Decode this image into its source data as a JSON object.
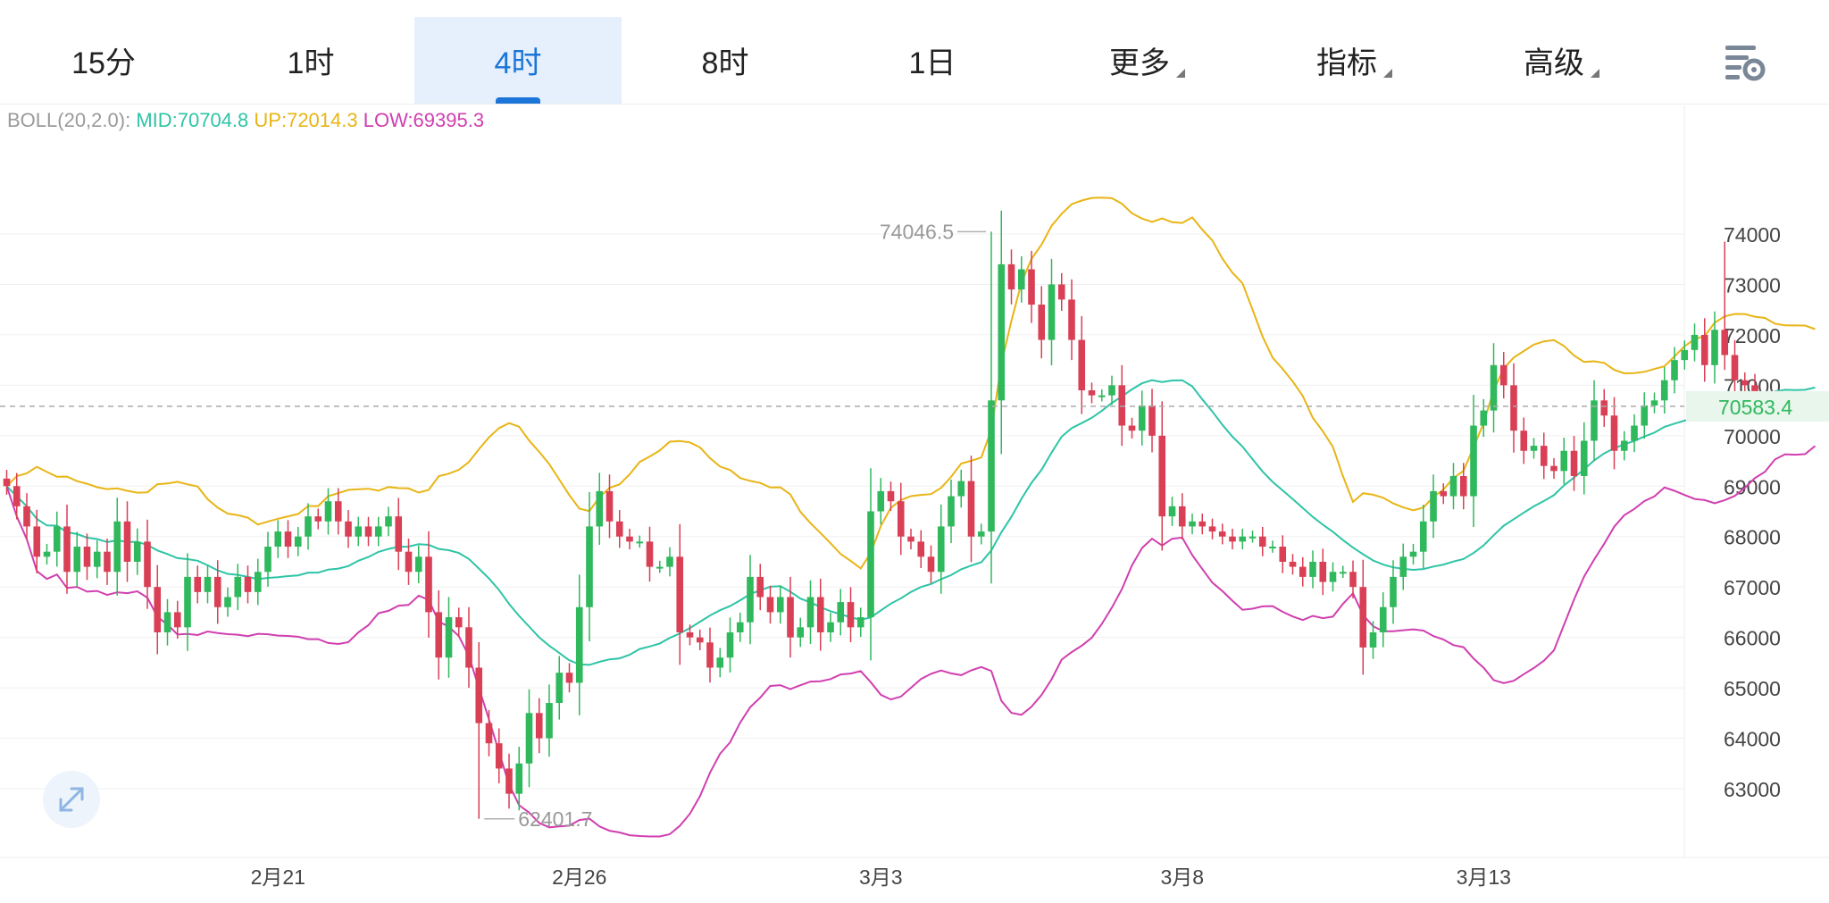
{
  "tabs": [
    {
      "label": "15分",
      "active": false
    },
    {
      "label": "1时",
      "active": false
    },
    {
      "label": "4时",
      "active": true
    },
    {
      "label": "8时",
      "active": false
    },
    {
      "label": "1日",
      "active": false
    },
    {
      "label": "更多",
      "active": false,
      "dropdown": true
    },
    {
      "label": "指标",
      "active": false,
      "dropdown": true
    },
    {
      "label": "高级",
      "active": false,
      "dropdown": true
    }
  ],
  "toolbar": {
    "settings_icon": "chart-settings-icon",
    "expand_icon": "expand-arrows-icon"
  },
  "indicator": {
    "name": "BOLL(20,2.0):",
    "mid_label": "MID:70704.8",
    "up_label": "UP:72014.3",
    "low_label": "LOW:69395.3"
  },
  "colors": {
    "up": "#2fb85c",
    "down": "#d93f55",
    "mid": "#2ec4a6",
    "upper": "#e8b515",
    "lower": "#d03fb0",
    "accent": "#1b74d7"
  },
  "chart_data": {
    "type": "candlestick",
    "interval": "4时",
    "y_ticks": [
      63000,
      64000,
      65000,
      66000,
      67000,
      68000,
      69000,
      70000,
      71000,
      72000,
      73000,
      74000
    ],
    "ylim": [
      62000,
      75000
    ],
    "x_labels": [
      {
        "label": "2月21",
        "index": 27
      },
      {
        "label": "2月26",
        "index": 57
      },
      {
        "label": "3月3",
        "index": 87
      },
      {
        "label": "3月8",
        "index": 117
      },
      {
        "label": "3月13",
        "index": 147
      }
    ],
    "current_price": 70583.4,
    "current_price_label": "70583.4",
    "high_marker": {
      "label": "74046.5",
      "index": 98,
      "value": 74046.5
    },
    "low_marker": {
      "label": "62401.7",
      "index": 47,
      "value": 62401.7
    },
    "closes": [
      69000,
      68600,
      68200,
      67600,
      67700,
      68200,
      67300,
      67800,
      67400,
      67700,
      67300,
      68300,
      67500,
      67900,
      67000,
      66100,
      66500,
      66200,
      67200,
      66900,
      67200,
      66600,
      66800,
      67200,
      66900,
      67300,
      67800,
      68100,
      67800,
      68000,
      68400,
      68300,
      68700,
      68300,
      68000,
      68200,
      68000,
      68200,
      68400,
      67700,
      67300,
      67600,
      66500,
      65600,
      66400,
      66200,
      65400,
      64300,
      63900,
      63400,
      62900,
      63500,
      64500,
      64000,
      64700,
      65300,
      65100,
      66600,
      68200,
      68900,
      68300,
      68000,
      67900,
      67900,
      67400,
      67400,
      67600,
      66100,
      66000,
      65900,
      65400,
      65600,
      66100,
      66300,
      67200,
      66800,
      66500,
      66800,
      66000,
      66200,
      66800,
      66100,
      66300,
      66700,
      66200,
      66400,
      68500,
      68900,
      68700,
      68000,
      67900,
      67600,
      67300,
      68200,
      68800,
      69100,
      68000,
      68100,
      70700,
      73400,
      72900,
      73300,
      72600,
      71900,
      73000,
      72700,
      71900,
      70900,
      70800,
      70800,
      71000,
      70200,
      70100,
      70600,
      70000,
      68400,
      68600,
      68200,
      68300,
      68200,
      68100,
      68000,
      67900,
      68000,
      68000,
      67800,
      67800,
      67500,
      67400,
      67200,
      67500,
      67100,
      67300,
      67300,
      67000,
      65800,
      66100,
      66600,
      67200,
      67600,
      67700,
      68300,
      68900,
      68800,
      69200,
      68800,
      70200,
      70500,
      71400,
      71000,
      70100,
      69700,
      69800,
      69400,
      69300,
      69700,
      69200,
      69900,
      70700,
      70400,
      69700,
      69900,
      70200,
      70600,
      70700,
      71100,
      71500,
      71700,
      72000,
      71400,
      72100,
      71600,
      71100,
      71000,
      70700,
      70700,
      70500,
      70600,
      70600,
      70500,
      70600
    ],
    "boll_mid_label": "MID",
    "boll_upper_label": "UP",
    "boll_lower_label": "LOW"
  }
}
